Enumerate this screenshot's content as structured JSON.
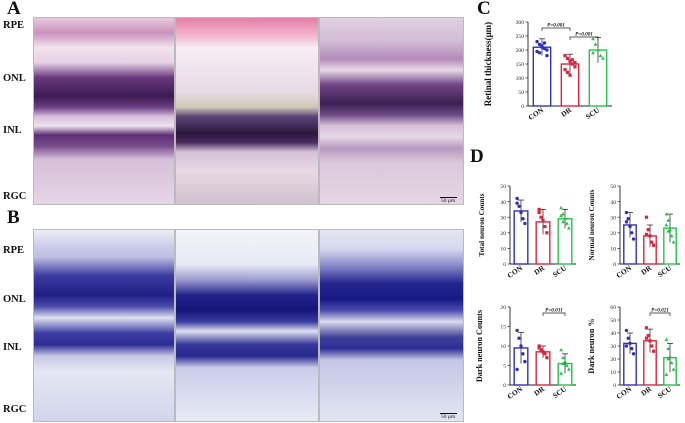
{
  "panels": {
    "a": "A",
    "b": "B",
    "c": "C",
    "d": "D"
  },
  "layers_a": {
    "rpe": "RPE",
    "onl": "ONL",
    "inl": "INL",
    "rgc": "RGC"
  },
  "layers_b": {
    "rpe": "RPE",
    "onl": "ONL",
    "inl": "INL",
    "rgc": "RGC"
  },
  "scale_bar": "50 μm",
  "colors": {
    "he_pink": "#d37fb8",
    "he_dark": "#3f1c57",
    "cresyl_blue": "#3a3aa0",
    "con": "#2f2fbf",
    "dr": "#e0223a",
    "scu": "#26c24a"
  },
  "chart_data": [
    {
      "type": "bar",
      "panel": "C",
      "categories": [
        "CON",
        "DR",
        "SCU"
      ],
      "values": [
        210,
        150,
        200
      ],
      "sd": [
        30,
        35,
        45
      ],
      "ylabel": "Retinal thickness(μm)",
      "yticks": [
        0,
        50,
        100,
        150,
        200,
        250,
        300
      ],
      "ylim": [
        0,
        300
      ],
      "points": [
        [
          230,
          220,
          215,
          205,
          200,
          195,
          190,
          210,
          225,
          180
        ],
        [
          180,
          170,
          160,
          150,
          140,
          130,
          120,
          110,
          165,
          155
        ],
        [
          240,
          220,
          200,
          180,
          170,
          190
        ]
      ],
      "annotations": [
        {
          "text": "P=0.001",
          "between": [
            0,
            1
          ]
        },
        {
          "text": "P=0.001",
          "between": [
            1,
            2
          ]
        }
      ]
    },
    {
      "type": "bar",
      "panel": "D1",
      "categories": [
        "CON",
        "DR",
        "SCU"
      ],
      "values": [
        34,
        27,
        29
      ],
      "sd": [
        7,
        8,
        6
      ],
      "ylabel": "Total neuron Counts",
      "yticks": [
        0,
        10,
        20,
        30,
        40,
        50
      ],
      "ylim": [
        0,
        50
      ],
      "points": [
        [
          42,
          37,
          33,
          29,
          26,
          39
        ],
        [
          35,
          30,
          28,
          24,
          20,
          33
        ],
        [
          36,
          32,
          29,
          26,
          23,
          31,
          27
        ]
      ]
    },
    {
      "type": "bar",
      "panel": "D2",
      "categories": [
        "CON",
        "DR",
        "SCU"
      ],
      "values": [
        25,
        18,
        23
      ],
      "sd": [
        8,
        7,
        9
      ],
      "ylabel": "Normal neuron Counts",
      "yticks": [
        0,
        10,
        20,
        30,
        40,
        50
      ],
      "ylim": [
        0,
        50
      ],
      "points": [
        [
          33,
          29,
          24,
          20,
          16,
          27
        ],
        [
          30,
          22,
          18,
          14,
          12,
          19
        ],
        [
          32,
          28,
          22,
          18,
          14,
          25,
          21
        ]
      ]
    },
    {
      "type": "bar",
      "panel": "D3",
      "categories": [
        "CON",
        "DR",
        "SCU"
      ],
      "values": [
        9.5,
        8.5,
        5.5
      ],
      "sd": [
        4,
        1.5,
        2.5
      ],
      "ylabel": "Dark neuron Counts",
      "yticks": [
        0,
        5,
        10,
        15,
        20
      ],
      "ylim": [
        0,
        20
      ],
      "points": [
        [
          14,
          12,
          10,
          8,
          6,
          4
        ],
        [
          10,
          9,
          8.5,
          8,
          7,
          9.5
        ],
        [
          9,
          7,
          6,
          5,
          4,
          3,
          5.5
        ]
      ],
      "annotations": [
        {
          "text": "P=0.031",
          "between": [
            1,
            2
          ]
        }
      ]
    },
    {
      "type": "bar",
      "panel": "D4",
      "categories": [
        "CON",
        "DR",
        "SCU"
      ],
      "values": [
        32,
        34,
        21
      ],
      "sd": [
        8,
        9,
        11
      ],
      "ylabel": "Dark neuron %",
      "yticks": [
        0,
        10,
        20,
        30,
        40,
        50,
        60
      ],
      "ylim": [
        0,
        60
      ],
      "points": [
        [
          42,
          36,
          32,
          28,
          24,
          30
        ],
        [
          44,
          38,
          34,
          30,
          26,
          36
        ],
        [
          35,
          28,
          22,
          17,
          12,
          8,
          20
        ]
      ],
      "annotations": [
        {
          "text": "P=0.021",
          "between": [
            1,
            2
          ]
        }
      ]
    }
  ]
}
